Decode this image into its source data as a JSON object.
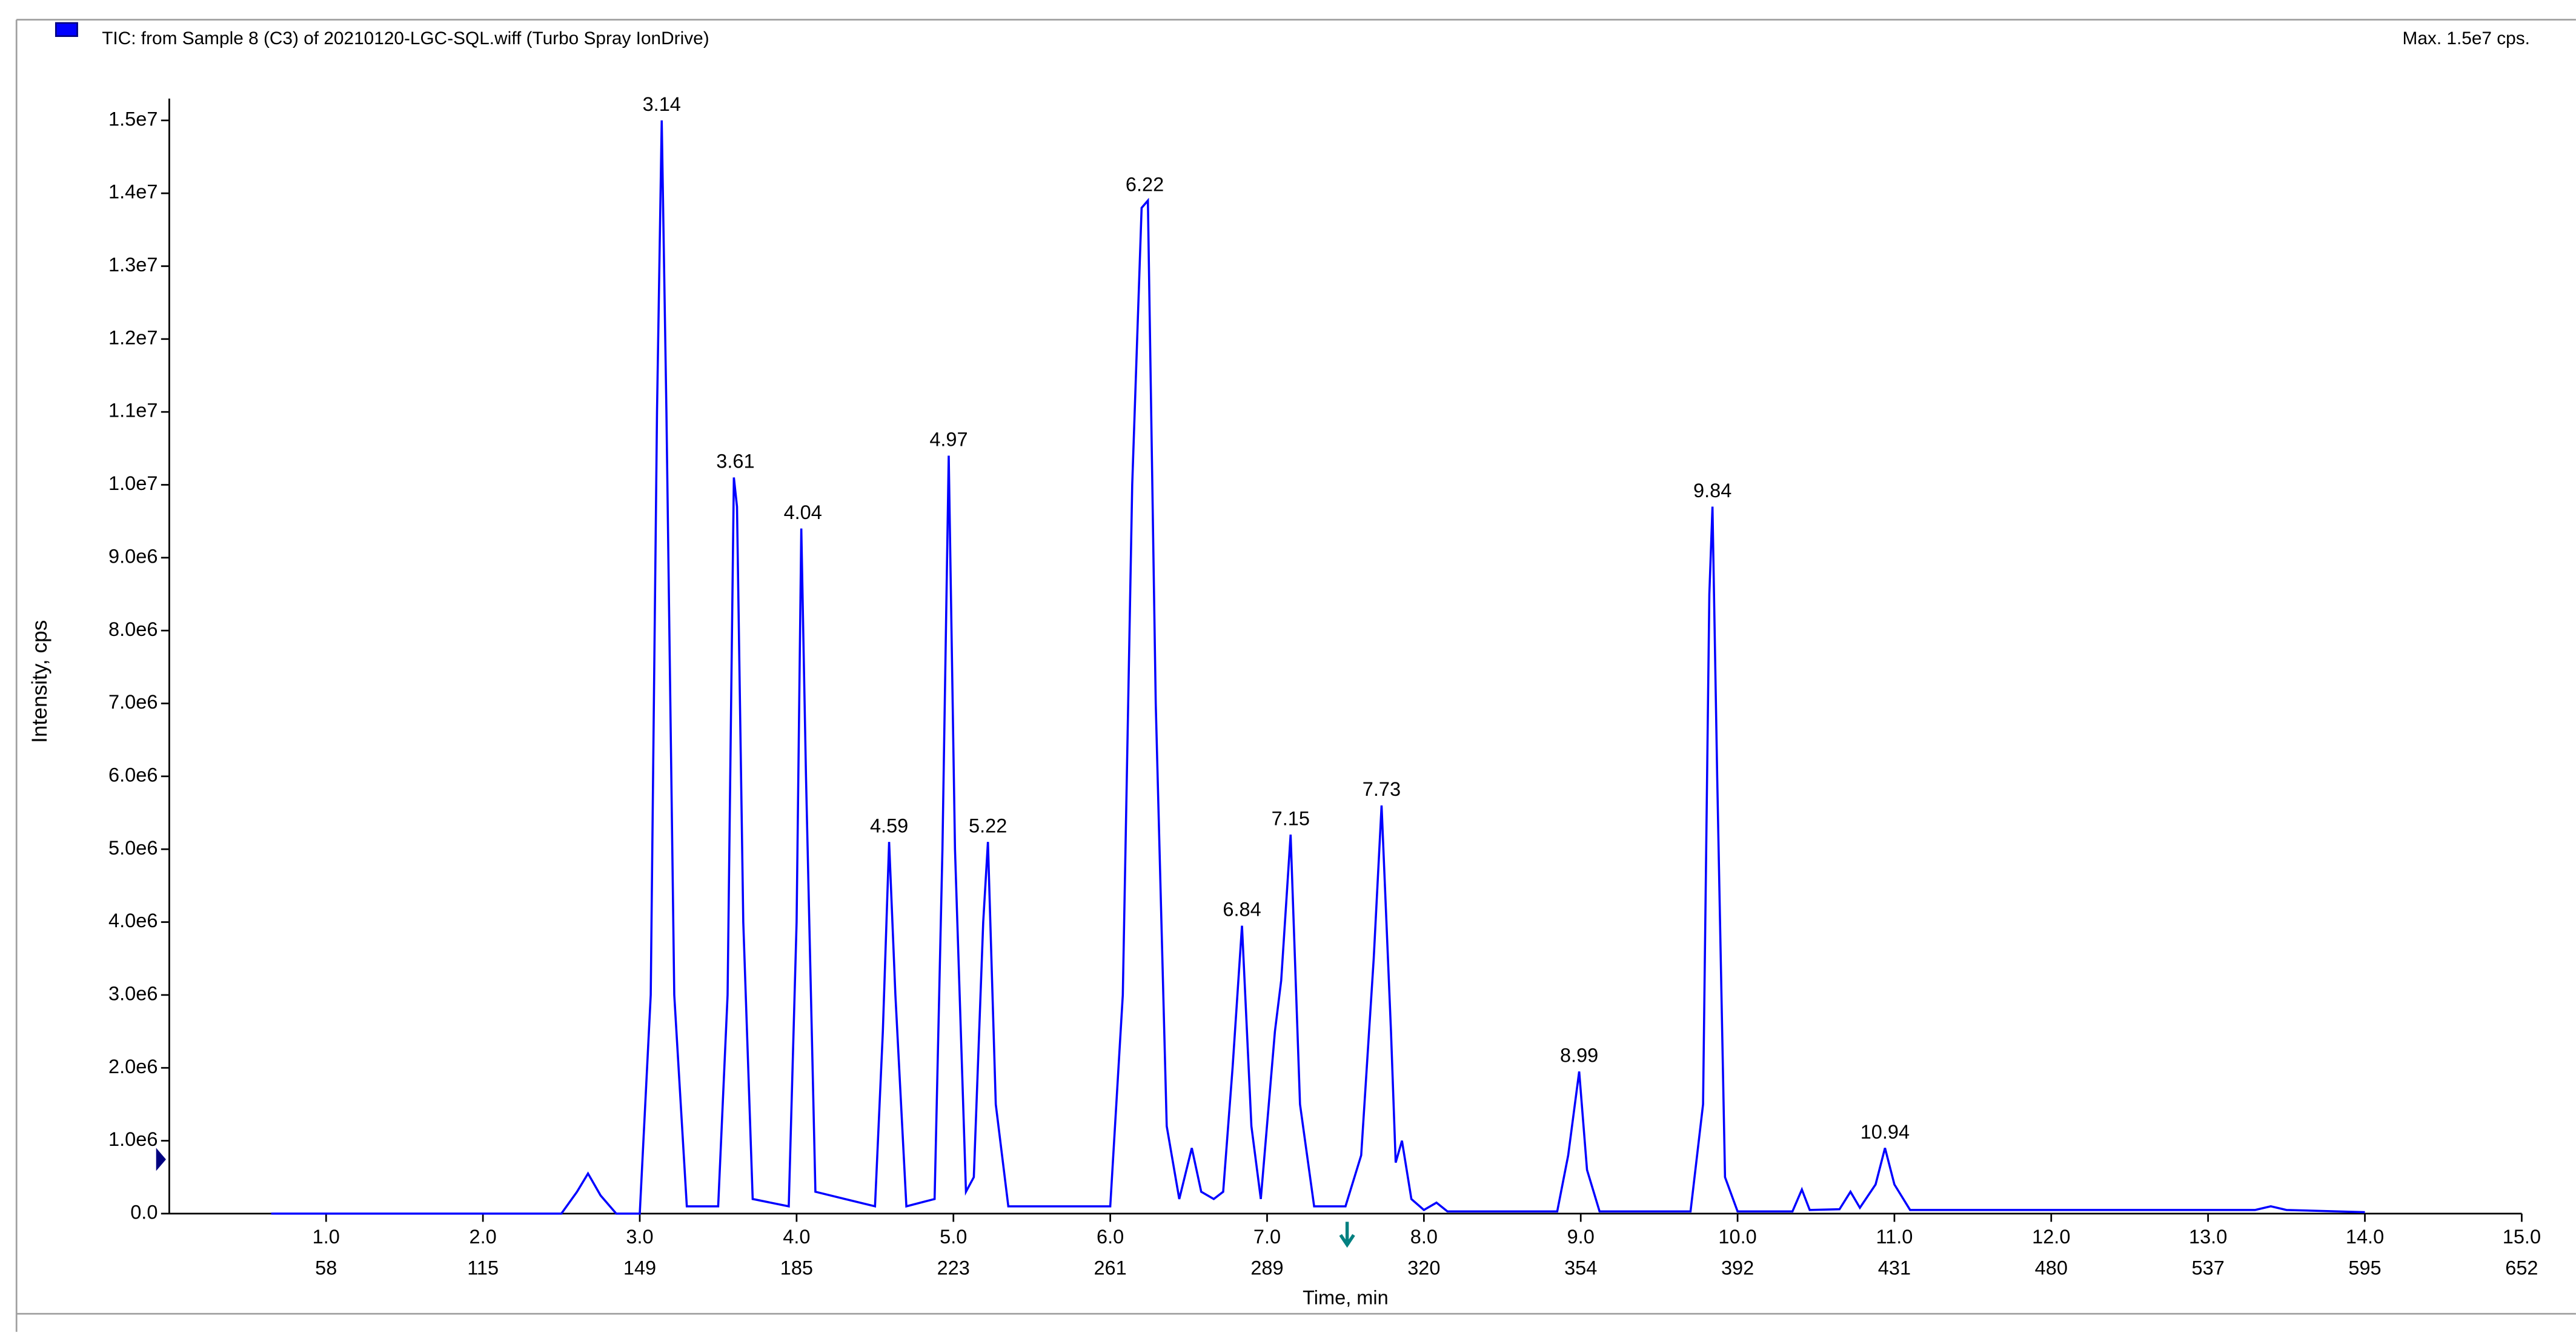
{
  "chart_data": {
    "type": "line",
    "title": "TIC: from Sample 8 (C3) of 20210120-LGC-SQL.wiff (Turbo Spray IonDrive)",
    "max_label": "Max. 1.5e7 cps.",
    "ylabel": "Intensity, cps",
    "xlabel": "Time, min",
    "color": "#0000ff",
    "xlim": [
      0,
      15
    ],
    "ylim": [
      0,
      15300000
    ],
    "xticks": [
      {
        "value": 1,
        "label": "1.0"
      },
      {
        "value": 2,
        "label": "2.0"
      },
      {
        "value": 3,
        "label": "3.0"
      },
      {
        "value": 4,
        "label": "4.0"
      },
      {
        "value": 5,
        "label": "5.0"
      },
      {
        "value": 6,
        "label": "6.0"
      },
      {
        "value": 7,
        "label": "7.0"
      },
      {
        "value": 8,
        "label": "8.0"
      },
      {
        "value": 9,
        "label": "9.0"
      },
      {
        "value": 10,
        "label": "10.0"
      },
      {
        "value": 11,
        "label": "11.0"
      },
      {
        "value": 12,
        "label": "12.0"
      },
      {
        "value": 13,
        "label": "13.0"
      },
      {
        "value": 14,
        "label": "14.0"
      },
      {
        "value": 15,
        "label": "15.0"
      }
    ],
    "xticks_secondary": [
      58,
      115,
      149,
      185,
      223,
      261,
      289,
      320,
      354,
      392,
      431,
      480,
      537,
      595,
      652
    ],
    "yticks": [
      {
        "value": 0,
        "label": "0.0"
      },
      {
        "value": 1000000,
        "label": "1.0e6"
      },
      {
        "value": 2000000,
        "label": "2.0e6"
      },
      {
        "value": 3000000,
        "label": "3.0e6"
      },
      {
        "value": 4000000,
        "label": "4.0e6"
      },
      {
        "value": 5000000,
        "label": "5.0e6"
      },
      {
        "value": 6000000,
        "label": "6.0e6"
      },
      {
        "value": 7000000,
        "label": "7.0e6"
      },
      {
        "value": 8000000,
        "label": "8.0e6"
      },
      {
        "value": 9000000,
        "label": "9.0e6"
      },
      {
        "value": 10000000,
        "label": "1.0e7"
      },
      {
        "value": 11000000,
        "label": "1.1e7"
      },
      {
        "value": 12000000,
        "label": "1.2e7"
      },
      {
        "value": 13000000,
        "label": "1.3e7"
      },
      {
        "value": 14000000,
        "label": "1.4e7"
      },
      {
        "value": 15000000,
        "label": "1.5e7"
      }
    ],
    "x": [
      0.65,
      2.5,
      2.6,
      2.67,
      2.75,
      2.85,
      3.0,
      3.07,
      3.11,
      3.14,
      3.17,
      3.22,
      3.3,
      3.5,
      3.56,
      3.6,
      3.62,
      3.66,
      3.72,
      3.95,
      4.0,
      4.03,
      4.06,
      4.12,
      4.5,
      4.55,
      4.59,
      4.63,
      4.7,
      4.88,
      4.93,
      4.97,
      5.01,
      5.08,
      5.13,
      5.19,
      5.22,
      5.27,
      5.35,
      6.0,
      6.08,
      6.14,
      6.2,
      6.24,
      6.29,
      6.36,
      6.44,
      6.52,
      6.58,
      6.66,
      6.72,
      6.78,
      6.84,
      6.9,
      6.96,
      7.05,
      7.09,
      7.15,
      7.21,
      7.3,
      7.5,
      7.6,
      7.68,
      7.73,
      7.79,
      7.82,
      7.86,
      7.92,
      8.0,
      8.08,
      8.15,
      8.85,
      8.92,
      8.99,
      9.04,
      9.12,
      9.7,
      9.78,
      9.82,
      9.84,
      9.87,
      9.92,
      10.0,
      10.35,
      10.41,
      10.46,
      10.65,
      10.72,
      10.78,
      10.88,
      10.94,
      11.0,
      11.1,
      13.3,
      13.4,
      13.5,
      14.0
    ],
    "values": [
      0,
      0,
      300000,
      550000,
      250000,
      0,
      0,
      3000000,
      11000000,
      15000000,
      11000000,
      3000000,
      100000,
      100000,
      3000000,
      10100000,
      9700000,
      4000000,
      200000,
      100000,
      4000000,
      9400000,
      6000000,
      300000,
      100000,
      2500000,
      5100000,
      3000000,
      100000,
      200000,
      5000000,
      10400000,
      5000000,
      300000,
      500000,
      4000000,
      5100000,
      1500000,
      100000,
      100000,
      3000000,
      10000000,
      13800000,
      13900000,
      7000000,
      1200000,
      200000,
      900000,
      300000,
      200000,
      300000,
      2000000,
      3950000,
      1200000,
      200000,
      2500000,
      3200000,
      5200000,
      1500000,
      100000,
      100000,
      800000,
      3500000,
      5600000,
      2500000,
      700000,
      1000000,
      200000,
      50000,
      150000,
      30000,
      30000,
      800000,
      1950000,
      600000,
      30000,
      30000,
      1500000,
      8500000,
      9700000,
      6000000,
      500000,
      30000,
      30000,
      330000,
      50000,
      60000,
      300000,
      80000,
      400000,
      900000,
      400000,
      50000,
      50000,
      100000,
      50000,
      20000
    ],
    "peaks": [
      {
        "time": 3.14,
        "intensity": 15000000
      },
      {
        "time": 3.61,
        "intensity": 10100000
      },
      {
        "time": 4.04,
        "intensity": 9400000
      },
      {
        "time": 4.59,
        "intensity": 5100000
      },
      {
        "time": 4.97,
        "intensity": 10400000
      },
      {
        "time": 5.22,
        "intensity": 5100000
      },
      {
        "time": 6.22,
        "intensity": 13900000
      },
      {
        "time": 6.84,
        "intensity": 3950000
      },
      {
        "time": 7.15,
        "intensity": 5200000
      },
      {
        "time": 7.73,
        "intensity": 5600000
      },
      {
        "time": 8.99,
        "intensity": 1950000
      },
      {
        "time": 9.84,
        "intensity": 9700000
      },
      {
        "time": 10.94,
        "intensity": 900000
      }
    ]
  }
}
